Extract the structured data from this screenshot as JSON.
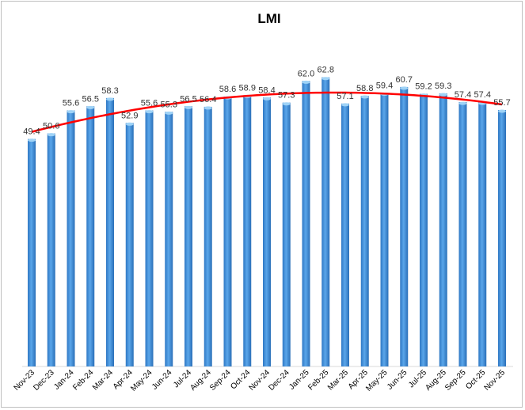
{
  "chart_data": {
    "type": "bar",
    "title": "LMI",
    "xlabel": "",
    "ylabel": "",
    "ylim": [
      0,
      71
    ],
    "grid": false,
    "categories": [
      "Nov-23",
      "Dec-23",
      "Jan-24",
      "Feb-24",
      "Mar-24",
      "Apr-24",
      "May-24",
      "Jun-24",
      "Jul-24",
      "Aug-24",
      "Sep-24",
      "Oct-24",
      "Nov-24",
      "Dec-24",
      "Jan-25",
      "Feb-25",
      "Mar-25",
      "Apr-25",
      "May-25",
      "Jun-25",
      "Jul-25",
      "Aug-25",
      "Sep-25",
      "Oct-25",
      "Nov-25"
    ],
    "values": [
      49.4,
      50.6,
      55.6,
      56.5,
      58.3,
      52.9,
      55.6,
      55.3,
      56.5,
      56.4,
      58.6,
      58.9,
      58.4,
      57.3,
      62.0,
      62.8,
      57.1,
      58.8,
      59.4,
      60.7,
      59.2,
      59.3,
      57.4,
      57.4,
      55.7
    ],
    "data_labels": [
      "49.4",
      "50.6",
      "55.6",
      "56.5",
      "58.3",
      "52.9",
      "55.6",
      "55.3",
      "56.5",
      "56.4",
      "58.6",
      "58.9",
      "58.4",
      "57.3",
      "62.0",
      "62.8",
      "57.1",
      "58.8",
      "59.4",
      "60.7",
      "59.2",
      "59.3",
      "57.4",
      "57.4",
      "55.7"
    ],
    "trendline": {
      "type": "polynomial",
      "order": 2,
      "color": "#ff0000"
    },
    "colors": {
      "bar": "#3f8fdc",
      "bar_top": "#9fd3f7",
      "label": "#333333"
    }
  }
}
